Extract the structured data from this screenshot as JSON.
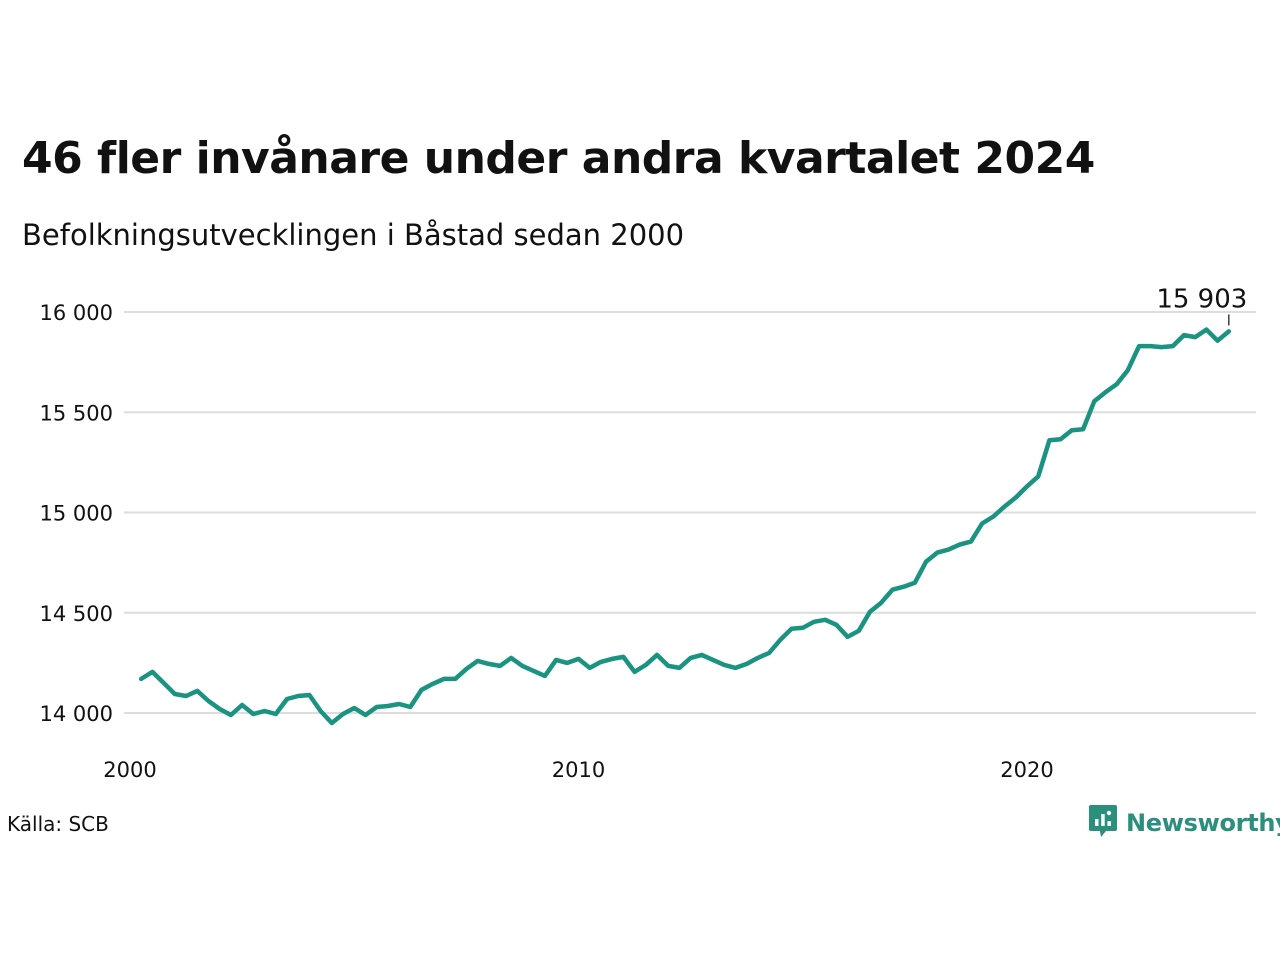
{
  "title": "46 fler invånare under andra kvartalet 2024",
  "subtitle": "Befolkningsutvecklingen i Båstad sedan 2000",
  "source": "Källa: SCB",
  "brand": "Newsworthy",
  "colors": {
    "line": "#1a9381",
    "grid": "#dddddd",
    "brand": "#2a8f7c"
  },
  "chart_data": {
    "type": "line",
    "title": "46 fler invånare under andra kvartalet 2024",
    "subtitle": "Befolkningsutvecklingen i Båstad sedan 2000",
    "xlabel": "",
    "ylabel": "",
    "ylim": [
      13800,
      16100
    ],
    "xlim": [
      2000,
      2025.2
    ],
    "grid": "horizontal",
    "y_ticks": [
      14000,
      14500,
      15000,
      15500,
      16000
    ],
    "y_tick_labels": [
      "14 000",
      "14 500",
      "15 000",
      "15 500",
      "16 000"
    ],
    "x_ticks": [
      2000,
      2010,
      2020
    ],
    "x_tick_labels": [
      "2000",
      "2010",
      "2020"
    ],
    "annotation": {
      "text": "15 903",
      "x": 2024.5,
      "y": 15903
    },
    "series": [
      {
        "name": "",
        "x": [
          2000.25,
          2000.5,
          2000.75,
          2001.0,
          2001.25,
          2001.5,
          2001.75,
          2002.0,
          2002.25,
          2002.5,
          2002.75,
          2003.0,
          2003.25,
          2003.5,
          2003.75,
          2004.0,
          2004.25,
          2004.5,
          2004.75,
          2005.0,
          2005.25,
          2005.5,
          2005.75,
          2006.0,
          2006.25,
          2006.5,
          2006.75,
          2007.0,
          2007.25,
          2007.5,
          2007.75,
          2008.0,
          2008.25,
          2008.5,
          2008.75,
          2009.0,
          2009.25,
          2009.5,
          2009.75,
          2010.0,
          2010.25,
          2010.5,
          2010.75,
          2011.0,
          2011.25,
          2011.5,
          2011.75,
          2012.0,
          2012.25,
          2012.5,
          2012.75,
          2013.0,
          2013.25,
          2013.5,
          2013.75,
          2014.0,
          2014.25,
          2014.5,
          2014.75,
          2015.0,
          2015.25,
          2015.5,
          2015.75,
          2016.0,
          2016.25,
          2016.5,
          2016.75,
          2017.0,
          2017.25,
          2017.5,
          2017.75,
          2018.0,
          2018.25,
          2018.5,
          2018.75,
          2019.0,
          2019.25,
          2019.5,
          2019.75,
          2020.0,
          2020.25,
          2020.5,
          2020.75,
          2021.0,
          2021.25,
          2021.5,
          2021.75,
          2022.0,
          2022.25,
          2022.5,
          2022.75,
          2023.0,
          2023.25,
          2023.5,
          2023.75,
          2024.0,
          2024.25,
          2024.5
        ],
        "values": [
          14170,
          14205,
          14150,
          14095,
          14085,
          14110,
          14060,
          14020,
          13990,
          14040,
          13995,
          14010,
          13995,
          14070,
          14085,
          14090,
          14010,
          13950,
          13995,
          14025,
          13990,
          14030,
          14035,
          14045,
          14030,
          14115,
          14145,
          14170,
          14170,
          14220,
          14260,
          14245,
          14235,
          14275,
          14235,
          14210,
          14185,
          14265,
          14250,
          14270,
          14225,
          14255,
          14270,
          14280,
          14205,
          14240,
          14290,
          14235,
          14225,
          14275,
          14290,
          14265,
          14240,
          14225,
          14245,
          14275,
          14300,
          14365,
          14420,
          14425,
          14455,
          14465,
          14440,
          14380,
          14410,
          14505,
          14550,
          14615,
          14630,
          14650,
          14755,
          14800,
          14815,
          14840,
          14855,
          14945,
          14980,
          15030,
          15075,
          15130,
          15180,
          15360,
          15365,
          15410,
          15415,
          15555,
          15600,
          15640,
          15710,
          15830,
          15830,
          15825,
          15830,
          15885,
          15875,
          15912,
          15857,
          15903
        ]
      }
    ]
  }
}
